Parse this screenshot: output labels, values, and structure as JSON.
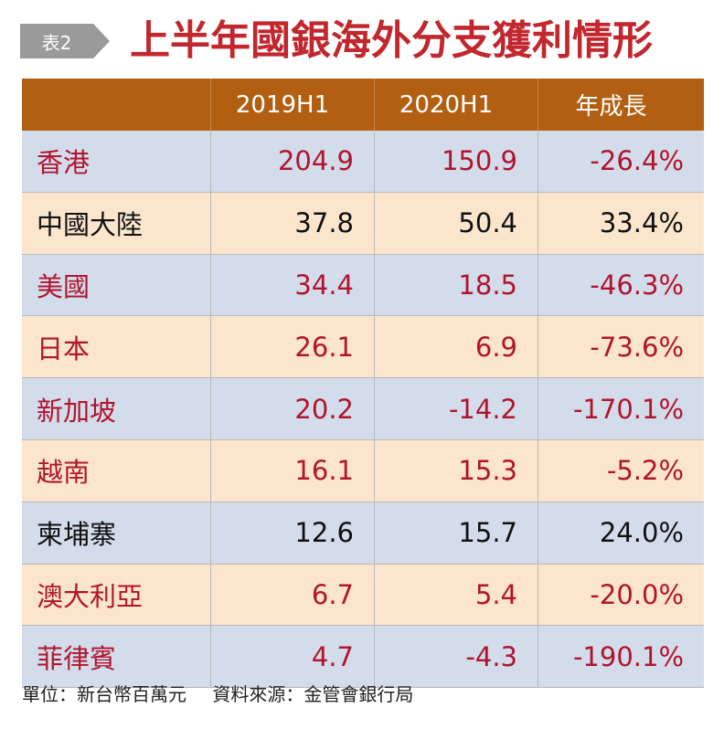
{
  "header": {
    "tag": "表2",
    "title": "上半年國銀海外分支獲利情形"
  },
  "chart_data": {
    "type": "table",
    "title": "上半年國銀海外分支獲利情形",
    "columns": [
      "",
      "2019H1",
      "2020H1",
      "年成長"
    ],
    "rows": [
      {
        "name": "香港",
        "v2019": "204.9",
        "v2020": "150.9",
        "growth": "-26.4%",
        "color": "red",
        "bg": "blue"
      },
      {
        "name": "中國大陸",
        "v2019": "37.8",
        "v2020": "50.4",
        "growth": "33.4%",
        "color": "black",
        "bg": "cream"
      },
      {
        "name": "美國",
        "v2019": "34.4",
        "v2020": "18.5",
        "growth": "-46.3%",
        "color": "red",
        "bg": "blue"
      },
      {
        "name": "日本",
        "v2019": "26.1",
        "v2020": "6.9",
        "growth": "-73.6%",
        "color": "red",
        "bg": "cream"
      },
      {
        "name": "新加坡",
        "v2019": "20.2",
        "v2020": "-14.2",
        "growth": "-170.1%",
        "color": "red",
        "bg": "blue"
      },
      {
        "name": "越南",
        "v2019": "16.1",
        "v2020": "15.3",
        "growth": "-5.2%",
        "color": "red",
        "bg": "cream"
      },
      {
        "name": "柬埔寨",
        "v2019": "12.6",
        "v2020": "15.7",
        "growth": "24.0%",
        "color": "black",
        "bg": "blue"
      },
      {
        "name": "澳大利亞",
        "v2019": "6.7",
        "v2020": "5.4",
        "growth": "-20.0%",
        "color": "red",
        "bg": "cream"
      },
      {
        "name": "菲律賓",
        "v2019": "4.7",
        "v2020": "-4.3",
        "growth": "-190.1%",
        "color": "red",
        "bg": "blue"
      }
    ]
  },
  "footer": {
    "unit": "單位：新台幣百萬元",
    "source": "資料來源：金管會銀行局"
  },
  "colors": {
    "header_bg": "#b35f12",
    "row_blue": "#d3dcea",
    "row_cream": "#fbe5cc",
    "negative_text": "#b0152e",
    "title_red": "#c1272d"
  }
}
